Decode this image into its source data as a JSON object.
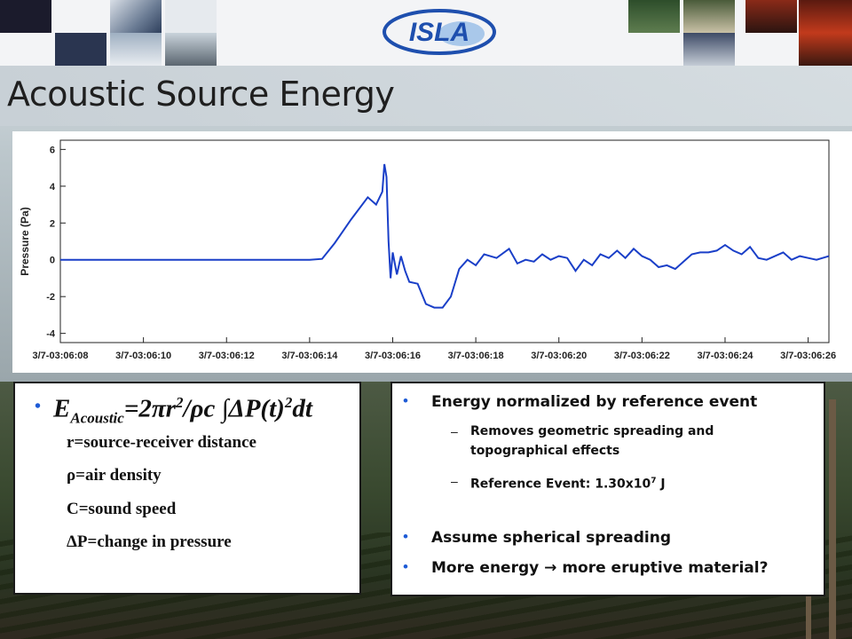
{
  "slide": {
    "title": "Acoustic Source Energy",
    "logo_text": "ISLA",
    "colors": {
      "accent": "#1e5bd6",
      "trace": "#1a3fc8",
      "logo": "#1e4fae"
    }
  },
  "formula": {
    "E": "E",
    "sub": "Acoustic",
    "mid": "=2πr",
    "sup1": "2",
    "rest": "/ρc ∫ΔP(t)",
    "sup2": "2",
    "end": "dt"
  },
  "definitions": [
    "r=source-receiver distance",
    "ρ=air density",
    "C=sound speed",
    "ΔP=change in pressure"
  ],
  "right_panel": {
    "bullets": [
      {
        "text": "Energy normalized by reference event",
        "subs": [
          {
            "text": "Removes geometric spreading and topographical effects"
          },
          {
            "pre": "Reference Event: 1.30x10",
            "sup": "7",
            "post": " J"
          }
        ]
      },
      {
        "text": "Assume spherical spreading"
      },
      {
        "pre": "More energy ",
        "arrow": "→",
        "post": " more eruptive material?"
      }
    ]
  },
  "chart_data": {
    "type": "line",
    "ylabel": "Pressure (Pa)",
    "xlabel": "",
    "ylim": [
      -4.5,
      6.5
    ],
    "xlim": [
      0,
      18.5
    ],
    "yticks": [
      -4,
      -2,
      0,
      2,
      4,
      6
    ],
    "xtick_labels": [
      "3/7-03:06:08",
      "3/7-03:06:10",
      "3/7-03:06:12",
      "3/7-03:06:14",
      "3/7-03:06:16",
      "3/7-03:06:18",
      "3/7-03:06:20",
      "3/7-03:06:22",
      "3/7-03:06:24",
      "3/7-03:06:26"
    ],
    "xtick_values": [
      0,
      2,
      4,
      6,
      8,
      10,
      12,
      14,
      16,
      18
    ],
    "grid": false,
    "series": [
      {
        "color": "#1a3fc8",
        "x": [
          0,
          1,
          2,
          3,
          4,
          5,
          5.5,
          6.0,
          6.3,
          6.6,
          7.0,
          7.4,
          7.6,
          7.75,
          7.8,
          7.85,
          7.9,
          7.95,
          8.0,
          8.1,
          8.2,
          8.3,
          8.4,
          8.6,
          8.8,
          9.0,
          9.2,
          9.4,
          9.6,
          9.8,
          10.0,
          10.2,
          10.5,
          10.8,
          11.0,
          11.2,
          11.4,
          11.6,
          11.8,
          12.0,
          12.2,
          12.4,
          12.6,
          12.8,
          13.0,
          13.2,
          13.4,
          13.6,
          13.8,
          14.0,
          14.2,
          14.4,
          14.6,
          14.8,
          15.0,
          15.2,
          15.4,
          15.6,
          15.8,
          16.0,
          16.2,
          16.4,
          16.6,
          16.8,
          17.0,
          17.2,
          17.4,
          17.6,
          17.8,
          18.0,
          18.2,
          18.5
        ],
        "y": [
          0,
          0,
          0,
          0,
          0,
          0,
          0,
          0,
          0.05,
          0.9,
          2.2,
          3.4,
          3.0,
          3.7,
          5.2,
          4.5,
          1.0,
          -1.0,
          0.4,
          -0.8,
          0.2,
          -0.6,
          -1.2,
          -1.3,
          -2.4,
          -2.6,
          -2.6,
          -2.0,
          -0.5,
          0.0,
          -0.3,
          0.3,
          0.1,
          0.6,
          -0.2,
          0.0,
          -0.1,
          0.3,
          0.0,
          0.2,
          0.1,
          -0.6,
          0.0,
          -0.3,
          0.3,
          0.1,
          0.5,
          0.1,
          0.6,
          0.2,
          0.0,
          -0.4,
          -0.3,
          -0.5,
          -0.1,
          0.3,
          0.4,
          0.4,
          0.5,
          0.8,
          0.5,
          0.3,
          0.7,
          0.1,
          0.0,
          0.2,
          0.4,
          0.0,
          0.2,
          0.1,
          0.0,
          0.2
        ]
      }
    ]
  }
}
